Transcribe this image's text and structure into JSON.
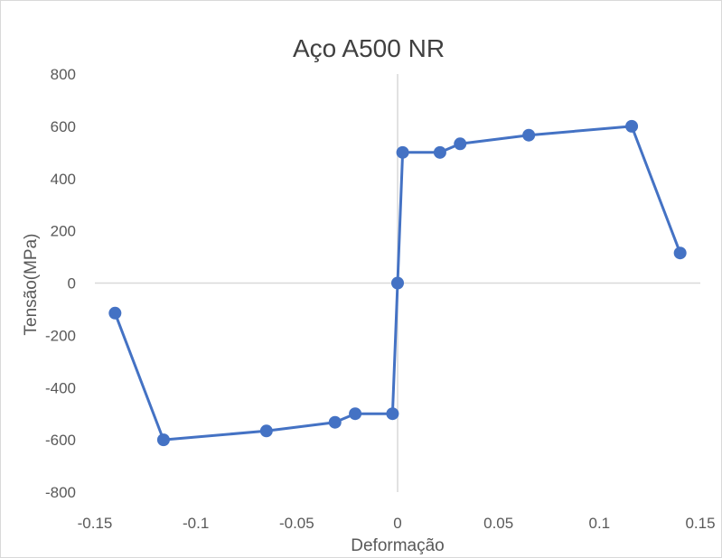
{
  "chart_data": {
    "type": "scatter",
    "title": "Aço A500 NR",
    "xlabel": "Deformação",
    "ylabel": "Tensão(MPa)",
    "xlim": [
      -0.15,
      0.15
    ],
    "ylim": [
      -800,
      800
    ],
    "x_ticks": [
      -0.15,
      -0.1,
      -0.05,
      0,
      0.05,
      0.1,
      0.15
    ],
    "x_tick_labels": [
      "-0.15",
      "-0.1",
      "-0.05",
      "0",
      "0.05",
      "0.1",
      "0.15"
    ],
    "y_ticks": [
      800,
      600,
      400,
      200,
      0,
      -200,
      -400,
      -600,
      -800
    ],
    "y_tick_labels": [
      "800",
      "600",
      "400",
      "200",
      "0",
      "-200",
      "-400",
      "-600",
      "-800"
    ],
    "grid": false,
    "legend": "none",
    "series": [
      {
        "x": [
          -0.14,
          -0.116,
          -0.065,
          -0.031,
          -0.021,
          -0.0025,
          0,
          0.0025,
          0.021,
          0.031,
          0.065,
          0.116,
          0.14
        ],
        "y": [
          -115,
          -600,
          -566,
          -533,
          -500,
          -500,
          0,
          500,
          500,
          533,
          566,
          600,
          115
        ],
        "color": "#4472C4"
      }
    ]
  }
}
